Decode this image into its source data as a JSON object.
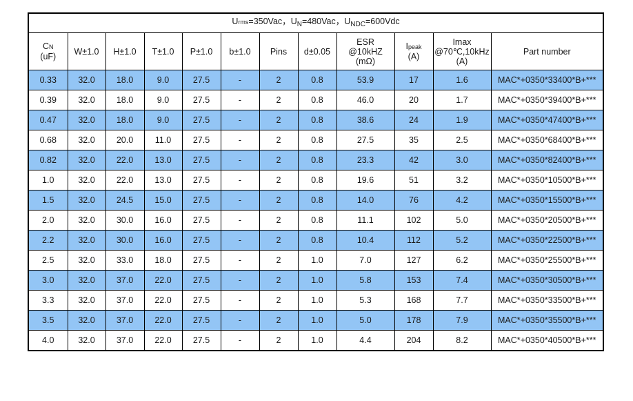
{
  "title": {
    "u1": "U",
    "u1_sub": "rms",
    "u1_val": "=350Vac，",
    "u2": "U",
    "u2_sub": "N",
    "u2_val": "=480Vac，",
    "u3": "U",
    "u3_sub": "NDC",
    "u3_val": "=600Vdc"
  },
  "headers": {
    "cn_main": "C",
    "cn_sub": "N",
    "cn_unit": "(uF)",
    "w": "W±1.0",
    "h": "H±1.0",
    "t": "T±1.0",
    "p": "P±1.0",
    "b": "b±1.0",
    "pins": "Pins",
    "d": "d±0.05",
    "esr_l1": "ESR",
    "esr_l2": "@10kHZ",
    "esr_l3": "(mΩ)",
    "ipeak_main": "I",
    "ipeak_sub": "peak",
    "ipeak_unit": "(A)",
    "imax_l1": "Imax",
    "imax_l2": "@70℃,10kHz",
    "imax_l3": "(A)",
    "part": "Part number"
  },
  "rows": [
    {
      "cn": "0.33",
      "w": "32.0",
      "h": "18.0",
      "t": "9.0",
      "p": "27.5",
      "b": "-",
      "pins": "2",
      "d": "0.8",
      "esr": "53.9",
      "ipeak": "17",
      "imax": "1.6",
      "part": "MAC*+0350*33400*B+***"
    },
    {
      "cn": "0.39",
      "w": "32.0",
      "h": "18.0",
      "t": "9.0",
      "p": "27.5",
      "b": "-",
      "pins": "2",
      "d": "0.8",
      "esr": "46.0",
      "ipeak": "20",
      "imax": "1.7",
      "part": "MAC*+0350*39400*B+***"
    },
    {
      "cn": "0.47",
      "w": "32.0",
      "h": "18.0",
      "t": "9.0",
      "p": "27.5",
      "b": "-",
      "pins": "2",
      "d": "0.8",
      "esr": "38.6",
      "ipeak": "24",
      "imax": "1.9",
      "part": "MAC*+0350*47400*B+***"
    },
    {
      "cn": "0.68",
      "w": "32.0",
      "h": "20.0",
      "t": "11.0",
      "p": "27.5",
      "b": "-",
      "pins": "2",
      "d": "0.8",
      "esr": "27.5",
      "ipeak": "35",
      "imax": "2.5",
      "part": "MAC*+0350*68400*B+***"
    },
    {
      "cn": "0.82",
      "w": "32.0",
      "h": "22.0",
      "t": "13.0",
      "p": "27.5",
      "b": "-",
      "pins": "2",
      "d": "0.8",
      "esr": "23.3",
      "ipeak": "42",
      "imax": "3.0",
      "part": "MAC*+0350*82400*B+***"
    },
    {
      "cn": "1.0",
      "w": "32.0",
      "h": "22.0",
      "t": "13.0",
      "p": "27.5",
      "b": "-",
      "pins": "2",
      "d": "0.8",
      "esr": "19.6",
      "ipeak": "51",
      "imax": "3.2",
      "part": "MAC*+0350*10500*B+***"
    },
    {
      "cn": "1.5",
      "w": "32.0",
      "h": "24.5",
      "t": "15.0",
      "p": "27.5",
      "b": "-",
      "pins": "2",
      "d": "0.8",
      "esr": "14.0",
      "ipeak": "76",
      "imax": "4.2",
      "part": "MAC*+0350*15500*B+***"
    },
    {
      "cn": "2.0",
      "w": "32.0",
      "h": "30.0",
      "t": "16.0",
      "p": "27.5",
      "b": "-",
      "pins": "2",
      "d": "0.8",
      "esr": "11.1",
      "ipeak": "102",
      "imax": "5.0",
      "part": "MAC*+0350*20500*B+***"
    },
    {
      "cn": "2.2",
      "w": "32.0",
      "h": "30.0",
      "t": "16.0",
      "p": "27.5",
      "b": "-",
      "pins": "2",
      "d": "0.8",
      "esr": "10.4",
      "ipeak": "112",
      "imax": "5.2",
      "part": "MAC*+0350*22500*B+***"
    },
    {
      "cn": "2.5",
      "w": "32.0",
      "h": "33.0",
      "t": "18.0",
      "p": "27.5",
      "b": "-",
      "pins": "2",
      "d": "1.0",
      "esr": "7.0",
      "ipeak": "127",
      "imax": "6.2",
      "part": "MAC*+0350*25500*B+***"
    },
    {
      "cn": "3.0",
      "w": "32.0",
      "h": "37.0",
      "t": "22.0",
      "p": "27.5",
      "b": "-",
      "pins": "2",
      "d": "1.0",
      "esr": "5.8",
      "ipeak": "153",
      "imax": "7.4",
      "part": "MAC*+0350*30500*B+***"
    },
    {
      "cn": "3.3",
      "w": "32.0",
      "h": "37.0",
      "t": "22.0",
      "p": "27.5",
      "b": "-",
      "pins": "2",
      "d": "1.0",
      "esr": "5.3",
      "ipeak": "168",
      "imax": "7.7",
      "part": "MAC*+0350*33500*B+***"
    },
    {
      "cn": "3.5",
      "w": "32.0",
      "h": "37.0",
      "t": "22.0",
      "p": "27.5",
      "b": "-",
      "pins": "2",
      "d": "1.0",
      "esr": "5.0",
      "ipeak": "178",
      "imax": "7.9",
      "part": "MAC*+0350*35500*B+***"
    },
    {
      "cn": "4.0",
      "w": "32.0",
      "h": "37.0",
      "t": "22.0",
      "p": "27.5",
      "b": "-",
      "pins": "2",
      "d": "1.0",
      "esr": "4.4",
      "ipeak": "204",
      "imax": "8.2",
      "part": "MAC*+0350*40500*B+***"
    }
  ],
  "colors": {
    "shaded_row": "#93c5f5",
    "plain_row": "#ffffff",
    "border": "#000000"
  }
}
